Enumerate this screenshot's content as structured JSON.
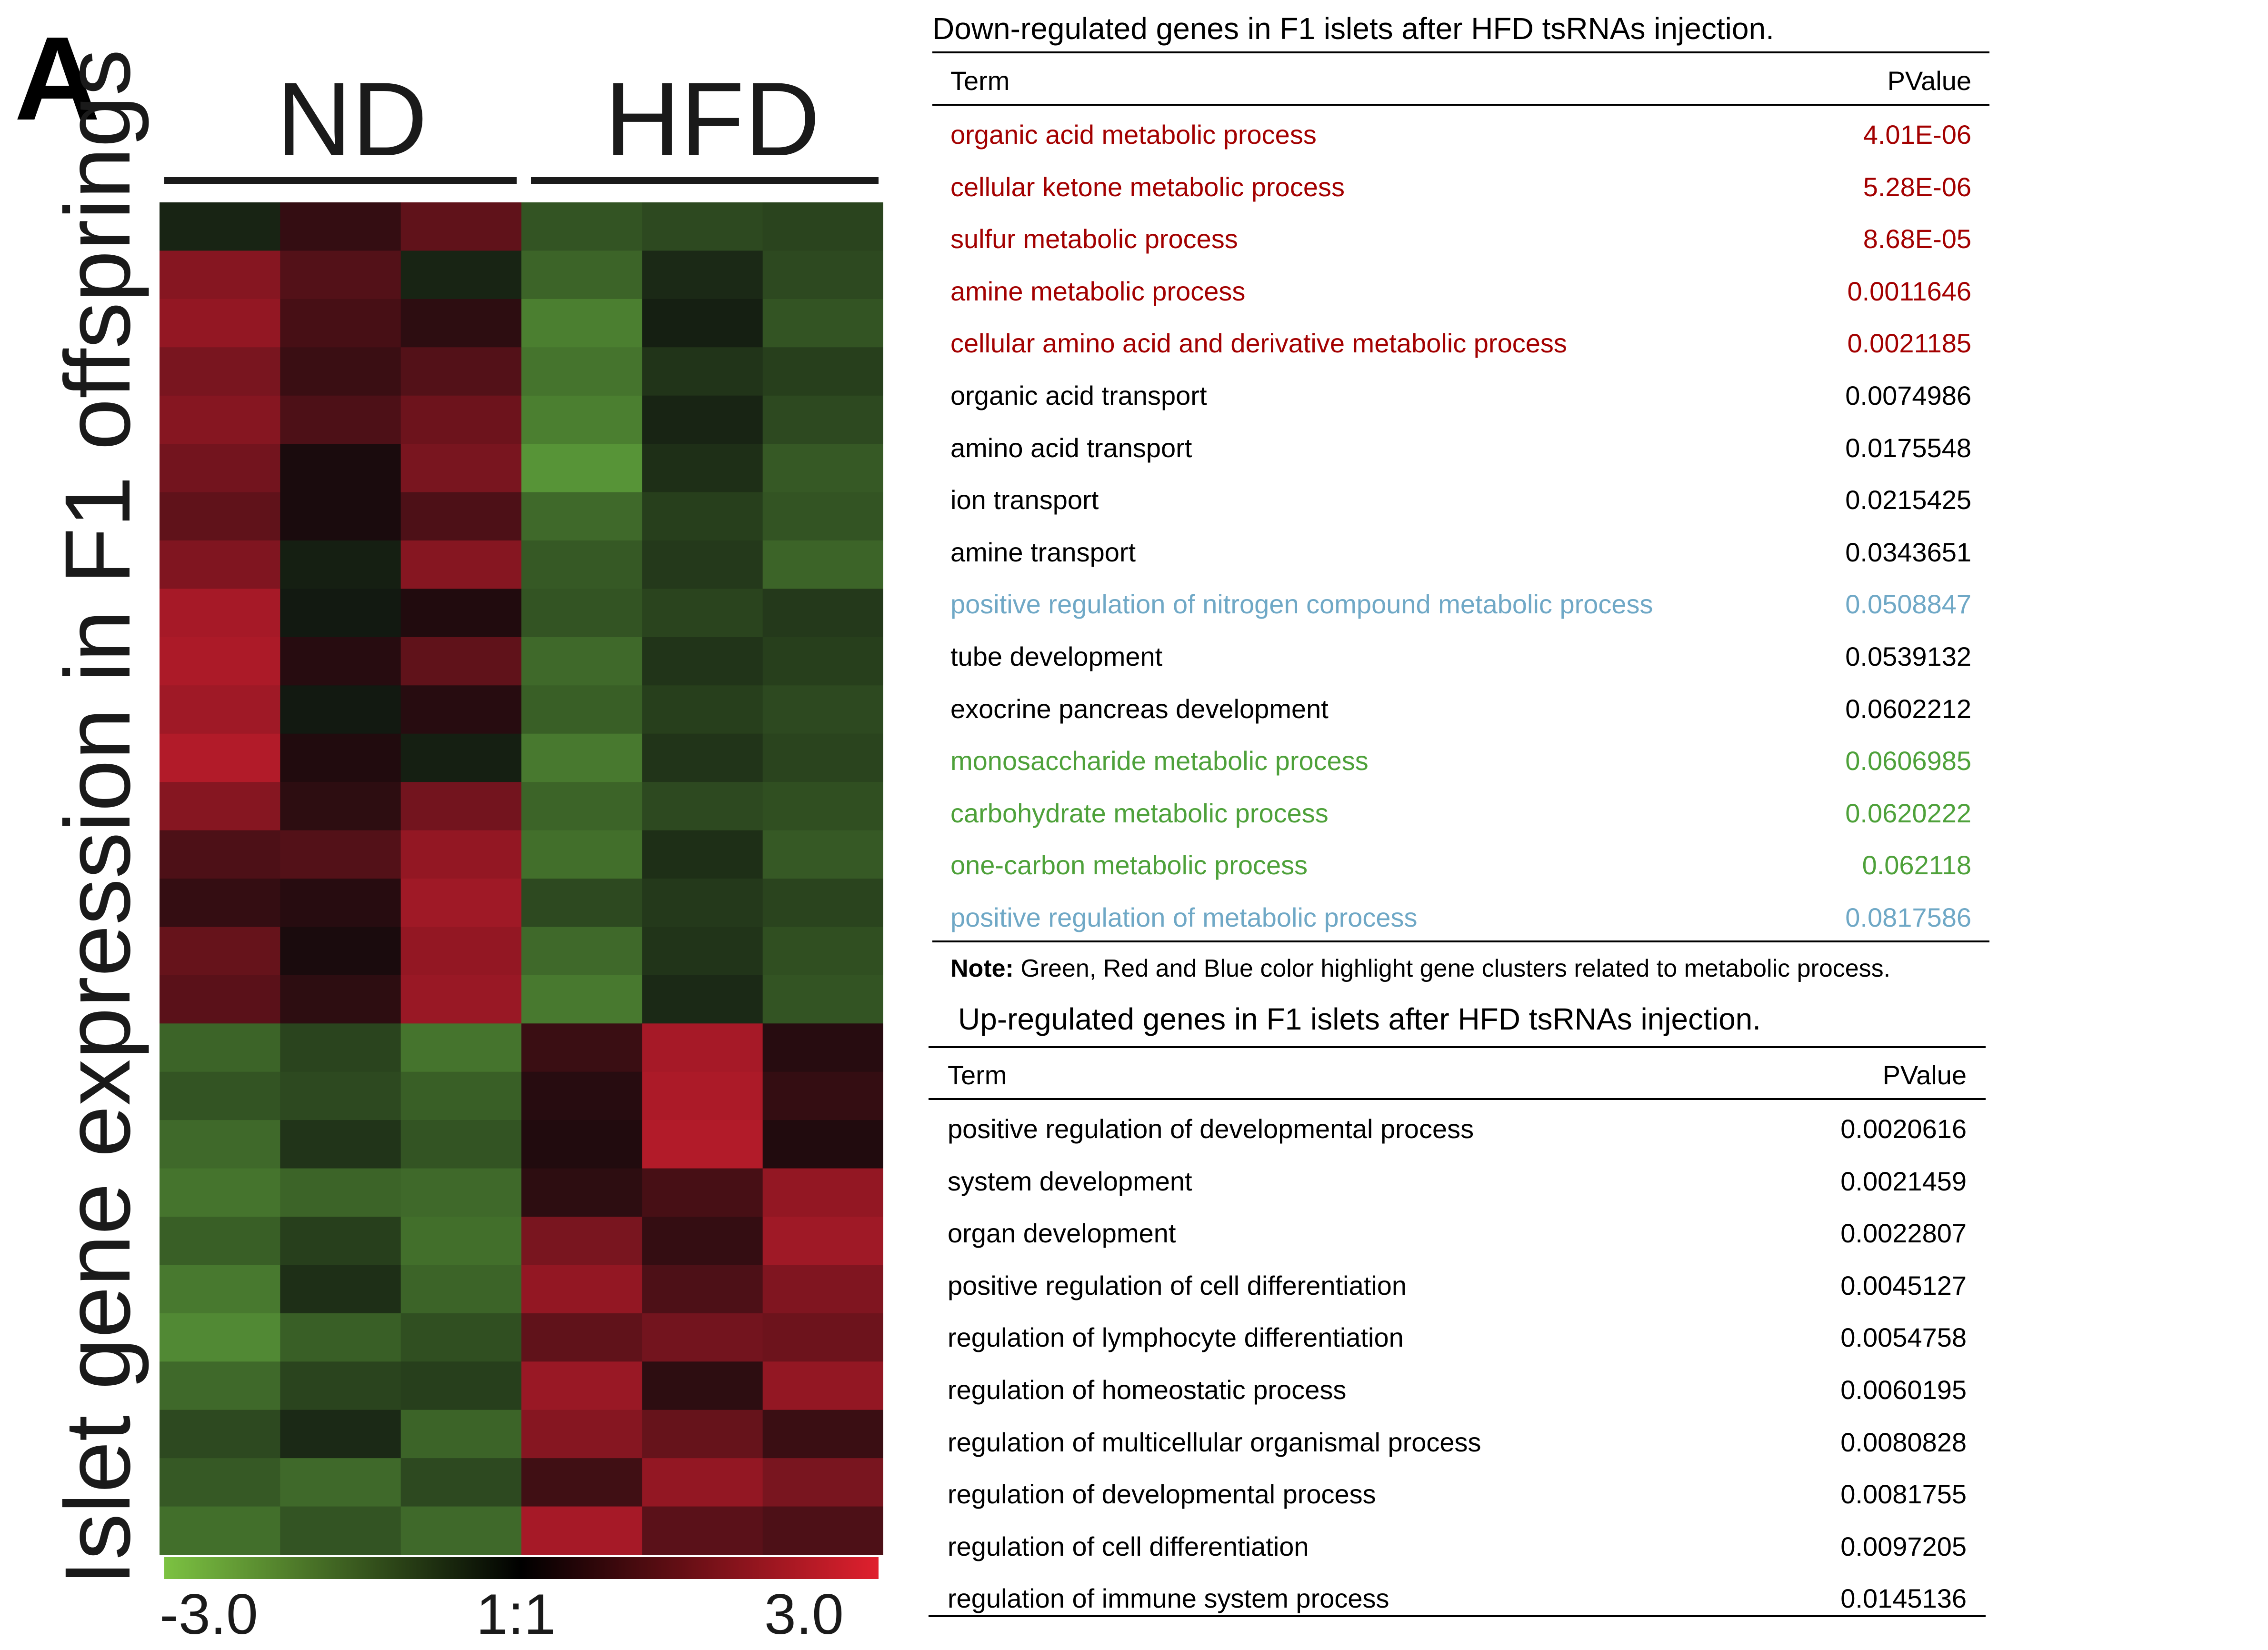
{
  "figure": {
    "panel_letter": "A",
    "group_labels": [
      "ND",
      "HFD"
    ],
    "ylabel": "Islet gene expression in F1 offsprings",
    "colorbar": {
      "min_label": "-3.0",
      "mid_label": "1:1",
      "max_label": "3.0",
      "colors": [
        "#7cc242",
        "#000000",
        "#e0202e"
      ]
    },
    "colors": {
      "red": "#a30000",
      "blue": "#6fa8c6",
      "green": "#4ea13a",
      "black": "#000000"
    }
  },
  "down_table": {
    "title": "Down-regulated genes in F1 islets after HFD tsRNAs injection.",
    "header": {
      "term": "Term",
      "pvalue": "PValue"
    },
    "rows": [
      {
        "term": "organic acid metabolic process",
        "pvalue": "4.01E-06",
        "color": "red"
      },
      {
        "term": "cellular ketone metabolic process",
        "pvalue": "5.28E-06",
        "color": "red"
      },
      {
        "term": "sulfur metabolic process",
        "pvalue": "8.68E-05",
        "color": "red"
      },
      {
        "term": "amine metabolic process",
        "pvalue": "0.0011646",
        "color": "red"
      },
      {
        "term": "cellular amino acid and derivative metabolic process",
        "pvalue": "0.0021185",
        "color": "red"
      },
      {
        "term": "organic acid transport",
        "pvalue": "0.0074986",
        "color": "black"
      },
      {
        "term": "amino acid transport",
        "pvalue": "0.0175548",
        "color": "black"
      },
      {
        "term": "ion transport",
        "pvalue": "0.0215425",
        "color": "black"
      },
      {
        "term": "amine transport",
        "pvalue": "0.0343651",
        "color": "black"
      },
      {
        "term": "positive regulation of nitrogen compound metabolic process",
        "pvalue": "0.0508847",
        "color": "blue"
      },
      {
        "term": "tube development",
        "pvalue": "0.0539132",
        "color": "black"
      },
      {
        "term": "exocrine pancreas development",
        "pvalue": "0.0602212",
        "color": "black"
      },
      {
        "term": "monosaccharide metabolic process",
        "pvalue": "0.0606985",
        "color": "green"
      },
      {
        "term": "carbohydrate metabolic process",
        "pvalue": "0.0620222",
        "color": "green"
      },
      {
        "term": "one-carbon metabolic process",
        "pvalue": "0.062118",
        "color": "green"
      },
      {
        "term": "positive regulation of metabolic process",
        "pvalue": "0.0817586",
        "color": "blue"
      }
    ],
    "note_label": "Note:",
    "note_text": "Green, Red and Blue color highlight gene clusters related to metabolic process."
  },
  "up_table": {
    "title": "Up-regulated genes in F1 islets after HFD tsRNAs injection.",
    "header": {
      "term": "Term",
      "pvalue": "PValue"
    },
    "rows": [
      {
        "term": "positive regulation of developmental process",
        "pvalue": "0.0020616",
        "color": "black"
      },
      {
        "term": "system development",
        "pvalue": "0.0021459",
        "color": "black"
      },
      {
        "term": "organ development",
        "pvalue": "0.0022807",
        "color": "black"
      },
      {
        "term": "positive regulation of cell differentiation",
        "pvalue": "0.0045127",
        "color": "black"
      },
      {
        "term": "regulation of lymphocyte differentiation",
        "pvalue": "0.0054758",
        "color": "black"
      },
      {
        "term": "regulation of homeostatic process",
        "pvalue": "0.0060195",
        "color": "black"
      },
      {
        "term": "regulation of multicellular organismal process",
        "pvalue": "0.0080828",
        "color": "black"
      },
      {
        "term": "regulation of developmental process",
        "pvalue": "0.0081755",
        "color": "black"
      },
      {
        "term": "regulation of cell differentiation",
        "pvalue": "0.0097205",
        "color": "black"
      },
      {
        "term": "regulation of immune system process",
        "pvalue": "0.0145136",
        "color": "black"
      }
    ]
  },
  "chart_data": {
    "type": "heatmap",
    "color_scale": [
      -3.0,
      3.0
    ],
    "columns": [
      "ND",
      "ND",
      "ND",
      "HFD",
      "HFD",
      "HFD"
    ],
    "values": [
      [
        -0.3,
        0.5,
        1.2,
        -1.2,
        -1.0,
        -0.9
      ],
      [
        1.8,
        1.0,
        -0.3,
        -1.5,
        -0.4,
        -1.0
      ],
      [
        2.0,
        0.8,
        0.4,
        -2.0,
        -0.2,
        -1.2
      ],
      [
        1.6,
        0.6,
        1.0,
        -1.8,
        -0.6,
        -0.8
      ],
      [
        1.8,
        0.9,
        1.4,
        -2.0,
        -0.3,
        -1.0
      ],
      [
        1.5,
        0.1,
        1.6,
        -2.4,
        -0.5,
        -1.3
      ],
      [
        1.2,
        0.1,
        0.9,
        -1.6,
        -0.8,
        -1.2
      ],
      [
        1.7,
        -0.2,
        1.8,
        -1.3,
        -0.7,
        -1.5
      ],
      [
        2.3,
        -0.1,
        0.2,
        -1.2,
        -0.9,
        -0.7
      ],
      [
        2.4,
        0.3,
        1.2,
        -1.6,
        -0.6,
        -0.8
      ],
      [
        2.2,
        -0.1,
        0.3,
        -1.4,
        -0.8,
        -1.0
      ],
      [
        2.5,
        0.2,
        -0.2,
        -1.9,
        -0.6,
        -0.9
      ],
      [
        1.8,
        0.4,
        1.5,
        -1.5,
        -1.0,
        -1.1
      ],
      [
        0.9,
        1.0,
        2.0,
        -1.7,
        -0.5,
        -1.3
      ],
      [
        0.5,
        0.3,
        2.2,
        -1.0,
        -0.7,
        -0.9
      ],
      [
        1.3,
        0.1,
        2.0,
        -1.6,
        -0.6,
        -1.1
      ],
      [
        1.1,
        0.4,
        2.1,
        -1.9,
        -0.4,
        -1.2
      ],
      [
        -1.5,
        -0.9,
        -1.8,
        0.6,
        2.3,
        0.3
      ],
      [
        -1.2,
        -1.0,
        -1.4,
        0.3,
        2.4,
        0.5
      ],
      [
        -1.6,
        -0.6,
        -1.2,
        0.2,
        2.5,
        0.2
      ],
      [
        -1.8,
        -1.5,
        -1.6,
        0.4,
        0.8,
        2.0
      ],
      [
        -1.4,
        -0.8,
        -1.7,
        1.6,
        0.5,
        2.2
      ],
      [
        -1.9,
        -0.5,
        -1.5,
        2.0,
        0.9,
        1.7
      ],
      [
        -2.2,
        -1.4,
        -1.1,
        1.2,
        1.5,
        1.4
      ],
      [
        -1.6,
        -0.9,
        -0.8,
        2.1,
        0.4,
        2.0
      ],
      [
        -1.0,
        -0.4,
        -1.5,
        1.8,
        1.3,
        0.6
      ],
      [
        -1.3,
        -1.6,
        -1.0,
        0.7,
        2.0,
        1.6
      ],
      [
        -1.7,
        -1.2,
        -1.6,
        2.3,
        1.1,
        0.9
      ]
    ]
  }
}
